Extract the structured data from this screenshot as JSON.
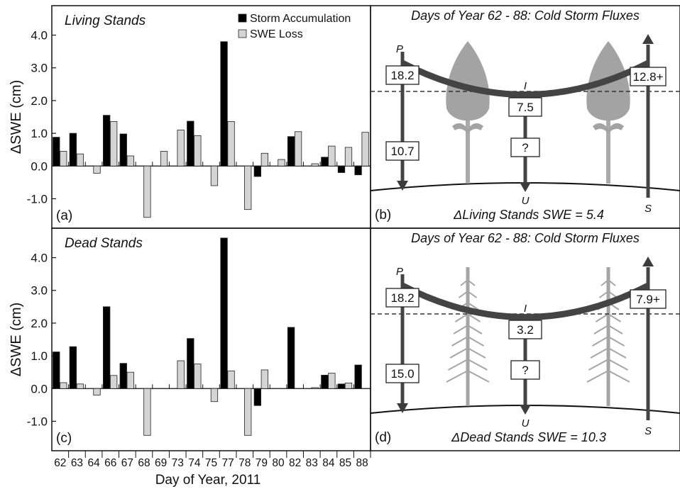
{
  "chart_data": [
    {
      "type": "bar",
      "panel_label": "(a)",
      "title": "Living Stands",
      "ylabel": "ΔSWE (cm)",
      "xlabel": "Day of Year, 2011",
      "ylim": [
        -1.9,
        4.9
      ],
      "yticks": [
        "-1.0",
        "0.0",
        "1.0",
        "2.0",
        "3.0",
        "4.0"
      ],
      "categories": [
        "62",
        "63",
        "64",
        "66",
        "67",
        "68",
        "69",
        "73",
        "74",
        "75",
        "77",
        "78",
        "79",
        "80",
        "82",
        "83",
        "84",
        "85",
        "88"
      ],
      "series": [
        {
          "name": "Storm Accumulation",
          "color": "#000000",
          "values": [
            0.88,
            1.0,
            0.0,
            1.55,
            0.98,
            0.0,
            0.0,
            0.0,
            1.37,
            0.0,
            3.8,
            0.0,
            -0.32,
            0.0,
            0.9,
            0.0,
            0.27,
            -0.2,
            -0.27
          ]
        },
        {
          "name": "SWE Loss",
          "color": "#d4d4d4",
          "values": [
            0.45,
            0.37,
            -0.22,
            1.36,
            0.31,
            -1.57,
            0.45,
            1.1,
            0.93,
            -0.6,
            1.36,
            -1.33,
            0.39,
            0.2,
            1.05,
            0.07,
            0.61,
            0.57,
            1.03
          ]
        }
      ],
      "legend": "top-right"
    },
    {
      "type": "bar",
      "panel_label": "(c)",
      "title": "Dead Stands",
      "ylabel": "ΔSWE (cm)",
      "xlabel": "Day of Year, 2011",
      "ylim": [
        -1.9,
        4.9
      ],
      "yticks": [
        "-1.0",
        "0.0",
        "1.0",
        "2.0",
        "3.0",
        "4.0"
      ],
      "categories": [
        "62",
        "63",
        "64",
        "66",
        "67",
        "68",
        "69",
        "73",
        "74",
        "75",
        "77",
        "78",
        "79",
        "80",
        "82",
        "83",
        "84",
        "85",
        "88"
      ],
      "series": [
        {
          "name": "Storm Accumulation",
          "color": "#000000",
          "values": [
            1.12,
            1.28,
            0.0,
            2.5,
            0.77,
            0.0,
            0.0,
            0.0,
            1.53,
            0.0,
            4.6,
            0.0,
            -0.52,
            0.0,
            1.87,
            0.0,
            0.41,
            0.14,
            0.72
          ]
        },
        {
          "name": "SWE Loss",
          "color": "#d4d4d4",
          "values": [
            0.18,
            0.14,
            -0.2,
            0.4,
            0.5,
            -1.43,
            0.0,
            0.85,
            0.75,
            -0.4,
            0.54,
            -1.43,
            0.57,
            0.0,
            0.0,
            0.03,
            0.47,
            0.17,
            0.0
          ]
        }
      ],
      "legend": "none"
    }
  ],
  "diagrams": [
    {
      "panel_label": "(b)",
      "title": "Days of Year 62 - 88:  Cold Storm Fluxes",
      "tree_kind": "living",
      "P_label": "P",
      "I_label": "I",
      "U_label": "U",
      "S_label": "S",
      "P_value": "18.2",
      "I_value": "7.5",
      "S_value": "12.8+",
      "below_value": "10.7",
      "U_value": "?",
      "summary": "ΔLiving Stands SWE = 5.4"
    },
    {
      "panel_label": "(d)",
      "title": "Days of Year 62 - 88:  Cold Storm Fluxes",
      "tree_kind": "dead",
      "P_label": "P",
      "I_label": "I",
      "U_label": "U",
      "S_label": "S",
      "P_value": "18.2",
      "I_value": "3.2",
      "S_value": "7.9+",
      "below_value": "15.0",
      "U_value": "?",
      "summary": "ΔDead Stands SWE = 10.3"
    }
  ]
}
